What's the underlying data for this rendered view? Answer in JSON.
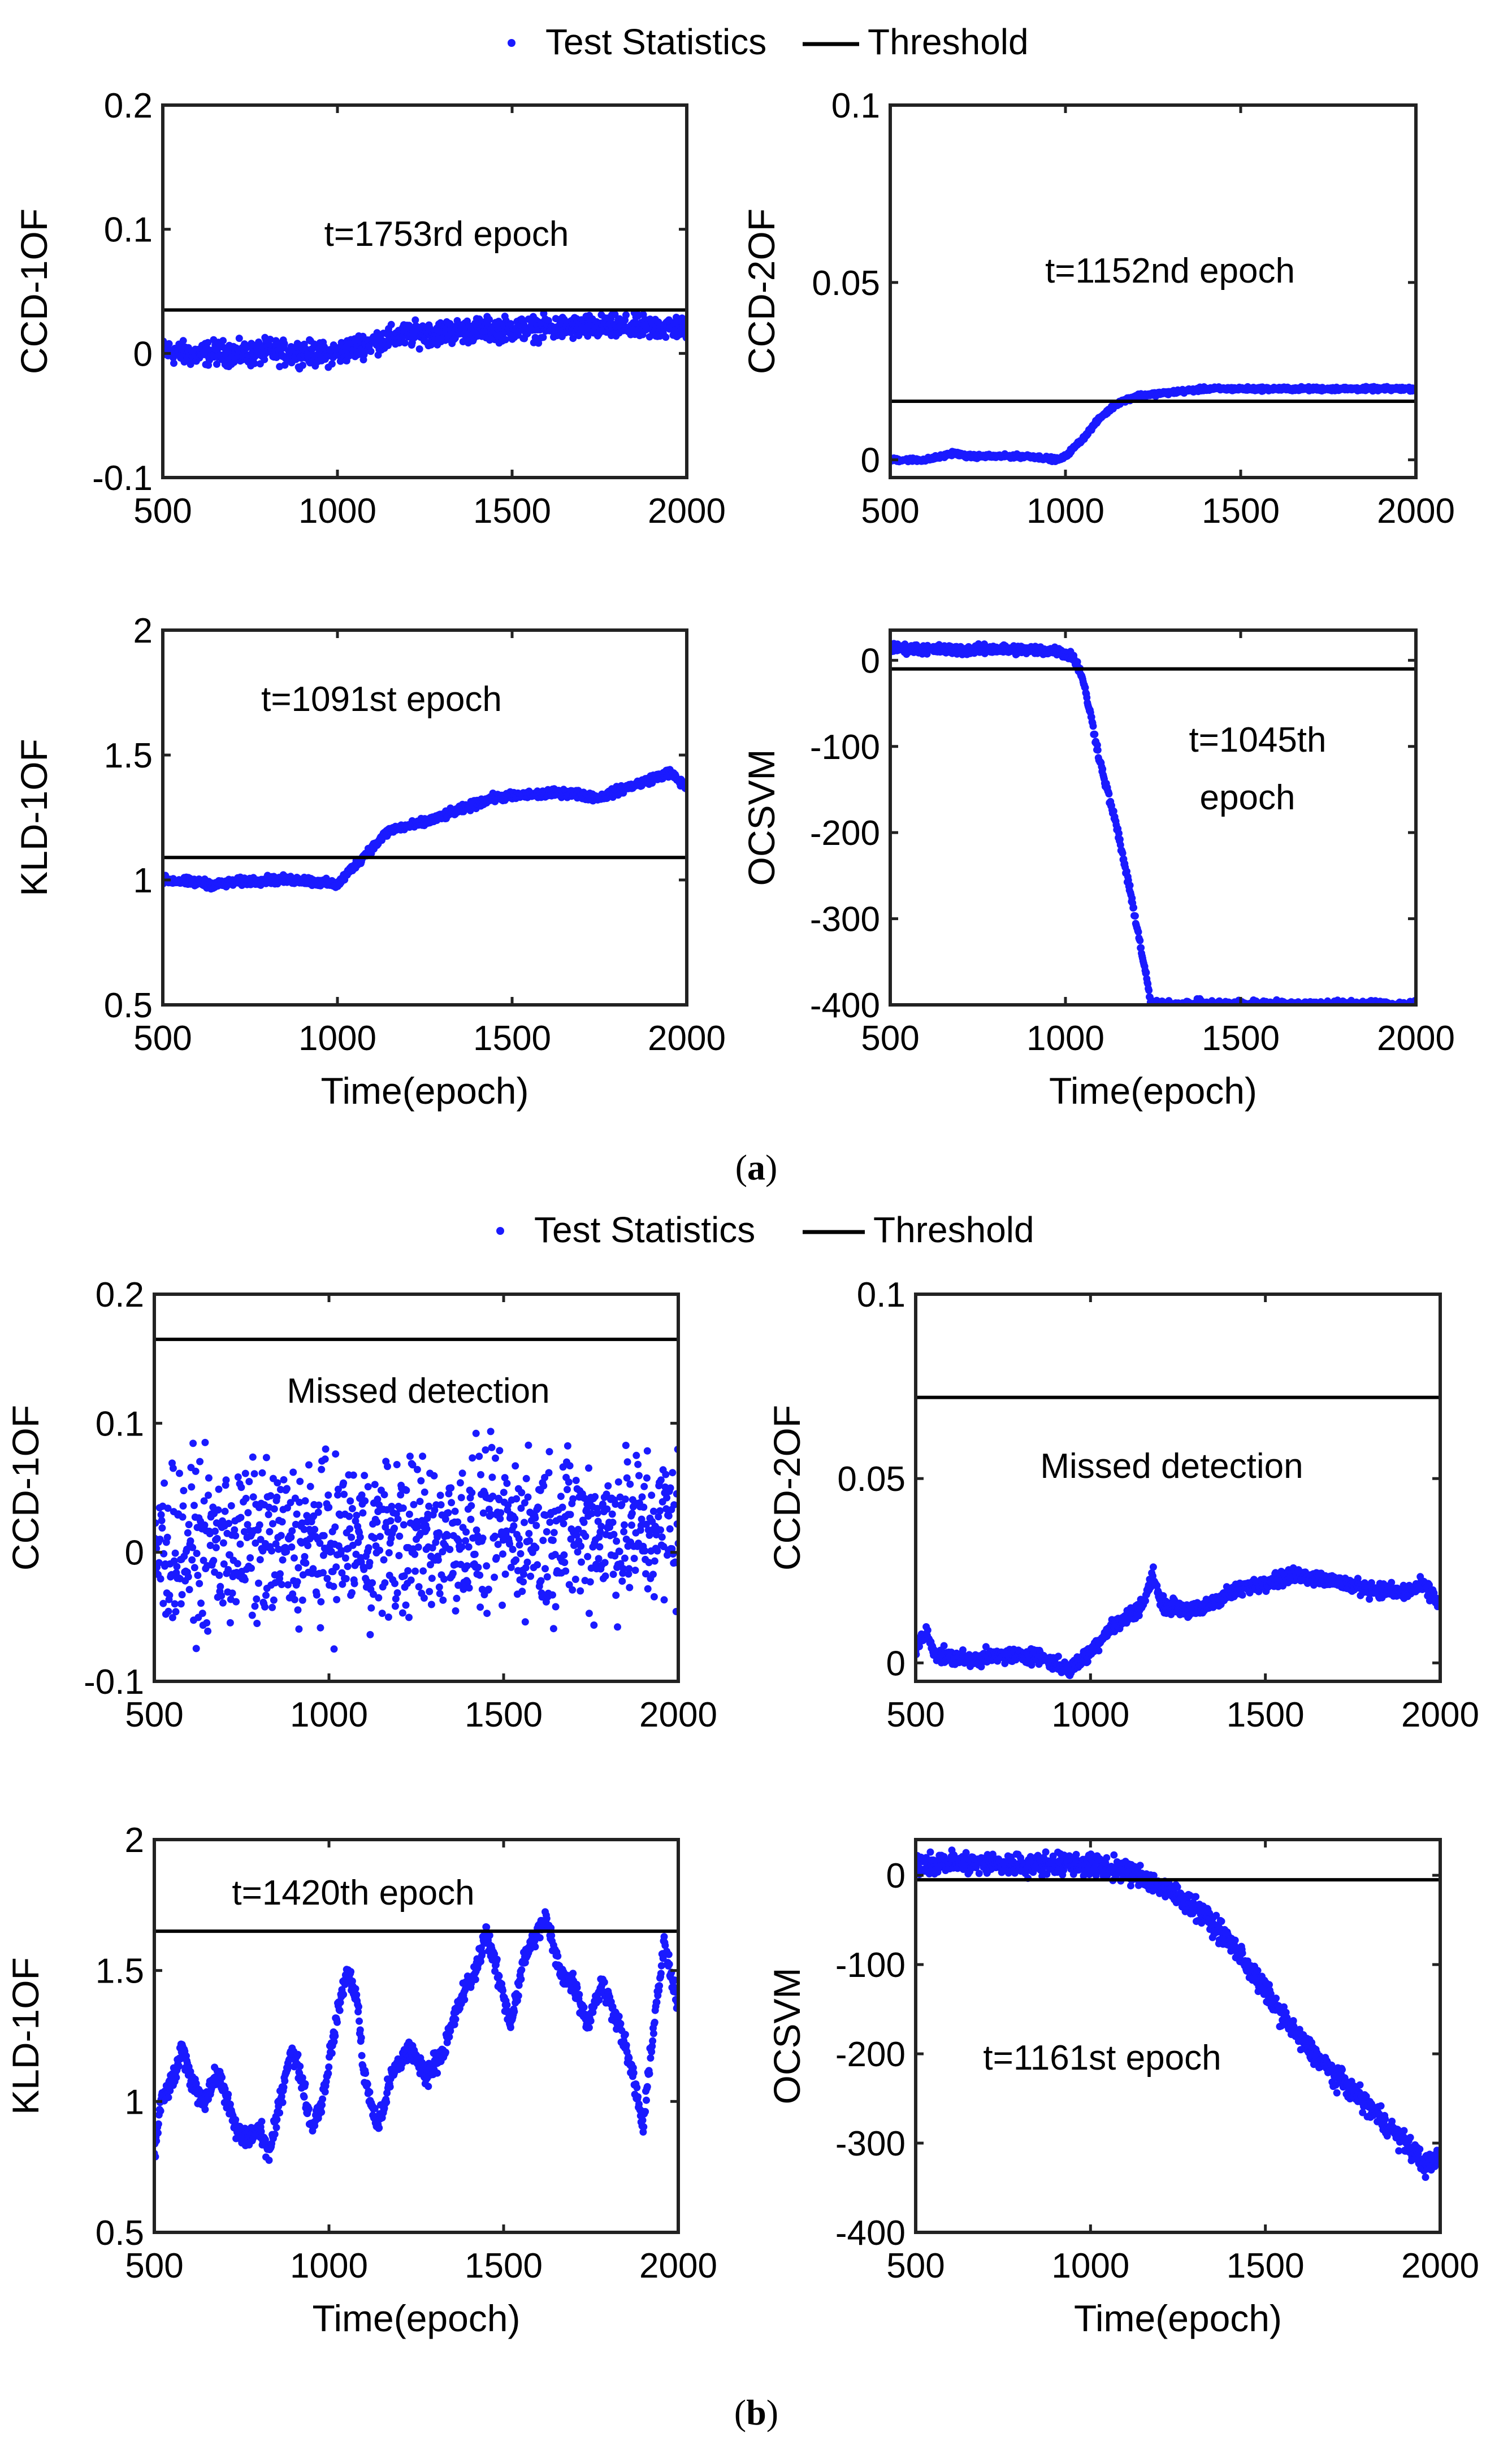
{
  "colors": {
    "points": "#1a1aff",
    "threshold": "#000000",
    "frame": "#222222"
  },
  "figure": {
    "panel_a_caption": "(a)",
    "panel_b_caption": "(b)",
    "caption_letter_a": "a",
    "caption_letter_b": "b",
    "legend": {
      "points_label": "Test Statistics",
      "line_label": "Threshold"
    },
    "xlabel": "Time(epoch)"
  },
  "chart_data": [
    {
      "panel": "a",
      "type": "scatter",
      "ylabel": "CCD-1OF",
      "annotation": "t=1753rd epoch",
      "xlim": [
        500,
        2000
      ],
      "ylim": [
        -0.1,
        0.2
      ],
      "xticks": [
        "500",
        "1000",
        "1500",
        "2000"
      ],
      "yticks": [
        "-0.1",
        "0",
        "0.1",
        "0.2"
      ],
      "threshold": 0.035,
      "series": [
        {
          "name": "Test Statistics",
          "points": [
            [
              500,
              0.002
            ],
            [
              550,
              0.0
            ],
            [
              600,
              -0.001
            ],
            [
              650,
              0.001
            ],
            [
              700,
              0.0
            ],
            [
              750,
              -0.001
            ],
            [
              800,
              0.002
            ],
            [
              850,
              0.0
            ],
            [
              900,
              0.001
            ],
            [
              950,
              -0.001
            ],
            [
              1000,
              0.0
            ],
            [
              1050,
              0.005
            ],
            [
              1100,
              0.009
            ],
            [
              1150,
              0.012
            ],
            [
              1200,
              0.015
            ],
            [
              1300,
              0.017
            ],
            [
              1400,
              0.019
            ],
            [
              1500,
              0.02
            ],
            [
              1600,
              0.02
            ],
            [
              1700,
              0.021
            ],
            [
              1800,
              0.021
            ],
            [
              1900,
              0.021
            ],
            [
              2000,
              0.021
            ]
          ],
          "noise": 0.007
        }
      ]
    },
    {
      "panel": "a",
      "type": "scatter",
      "ylabel": "CCD-2OF",
      "annotation": "t=1152nd epoch",
      "xlim": [
        500,
        2000
      ],
      "ylim": [
        -0.005,
        0.1
      ],
      "xticks": [
        "500",
        "1000",
        "1500",
        "2000"
      ],
      "yticks": [
        "0",
        "0.05",
        "0.1"
      ],
      "threshold": 0.0165,
      "series": [
        {
          "name": "Test Statistics",
          "points": [
            [
              500,
              0.0
            ],
            [
              600,
              0.0
            ],
            [
              650,
              0.001
            ],
            [
              680,
              0.002
            ],
            [
              720,
              0.001
            ],
            [
              800,
              0.001
            ],
            [
              900,
              0.001
            ],
            [
              980,
              0.0
            ],
            [
              1000,
              0.001
            ],
            [
              1050,
              0.006
            ],
            [
              1100,
              0.012
            ],
            [
              1150,
              0.016
            ],
            [
              1200,
              0.018
            ],
            [
              1300,
              0.019
            ],
            [
              1400,
              0.02
            ],
            [
              1500,
              0.02
            ],
            [
              1600,
              0.02
            ],
            [
              1700,
              0.02
            ],
            [
              1800,
              0.02
            ],
            [
              1900,
              0.02
            ],
            [
              2000,
              0.02
            ]
          ],
          "noise": 0.0004
        }
      ]
    },
    {
      "panel": "a",
      "type": "scatter",
      "ylabel": "KLD-1OF",
      "annotation": "t=1091st epoch",
      "xlim": [
        500,
        2000
      ],
      "ylim": [
        0.5,
        2
      ],
      "xticks": [
        "500",
        "1000",
        "1500",
        "2000"
      ],
      "yticks": [
        "0.5",
        "1",
        "1.5",
        "2"
      ],
      "threshold": 1.09,
      "series": [
        {
          "name": "Test Statistics",
          "points": [
            [
              500,
              1.0
            ],
            [
              600,
              0.99
            ],
            [
              650,
              0.98
            ],
            [
              700,
              0.99
            ],
            [
              800,
              1.0
            ],
            [
              900,
              1.0
            ],
            [
              1000,
              0.98
            ],
            [
              1050,
              1.06
            ],
            [
              1100,
              1.13
            ],
            [
              1150,
              1.2
            ],
            [
              1250,
              1.23
            ],
            [
              1350,
              1.28
            ],
            [
              1450,
              1.33
            ],
            [
              1550,
              1.34
            ],
            [
              1650,
              1.35
            ],
            [
              1750,
              1.33
            ],
            [
              1850,
              1.38
            ],
            [
              1950,
              1.43
            ],
            [
              2000,
              1.37
            ]
          ],
          "noise": 0.012
        }
      ]
    },
    {
      "panel": "a",
      "type": "scatter",
      "ylabel": "OCSVM",
      "annotation": "t=1045th",
      "annotation_line2": "epoch",
      "xlim": [
        500,
        2000
      ],
      "ylim": [
        -400,
        35
      ],
      "xticks": [
        "500",
        "1000",
        "1500",
        "2000"
      ],
      "yticks": [
        "-400",
        "-300",
        "-200",
        "-100",
        "0"
      ],
      "threshold": -10,
      "series": [
        {
          "name": "Test Statistics",
          "points": [
            [
              500,
              14
            ],
            [
              600,
              13
            ],
            [
              700,
              12
            ],
            [
              800,
              13
            ],
            [
              900,
              12
            ],
            [
              980,
              11
            ],
            [
              1020,
              5
            ],
            [
              1045,
              -15
            ],
            [
              1070,
              -60
            ],
            [
              1100,
              -120
            ],
            [
              1150,
              -200
            ],
            [
              1200,
              -300
            ],
            [
              1245,
              -400
            ]
          ],
          "noise": 4
        }
      ]
    },
    {
      "panel": "b",
      "type": "scatter",
      "ylabel": "CCD-1OF",
      "annotation": "Missed detection",
      "xlim": [
        500,
        2000
      ],
      "ylim": [
        -0.1,
        0.2
      ],
      "xticks": [
        "500",
        "1000",
        "1500",
        "2000"
      ],
      "yticks": [
        "-0.1",
        "0",
        "0.1",
        "0.2"
      ],
      "threshold": 0.165,
      "series": [
        {
          "name": "Test Statistics",
          "points": [
            [
              500,
              0.003
            ],
            [
              1000,
              0.008
            ],
            [
              1500,
              0.016
            ],
            [
              2000,
              0.02
            ]
          ],
          "noise": 0.045
        }
      ]
    },
    {
      "panel": "b",
      "type": "scatter",
      "ylabel": "CCD-2OF",
      "annotation": "Missed detection",
      "xlim": [
        500,
        2000
      ],
      "ylim": [
        -0.005,
        0.1
      ],
      "xticks": [
        "500",
        "1000",
        "1500",
        "2000"
      ],
      "yticks": [
        "0",
        "0.05",
        "0.1"
      ],
      "threshold": 0.072,
      "series": [
        {
          "name": "Test Statistics",
          "points": [
            [
              500,
              0.004
            ],
            [
              530,
              0.008
            ],
            [
              560,
              0.002
            ],
            [
              650,
              0.001
            ],
            [
              750,
              0.002
            ],
            [
              850,
              0.002
            ],
            [
              940,
              -0.002
            ],
            [
              1000,
              0.003
            ],
            [
              1050,
              0.009
            ],
            [
              1100,
              0.012
            ],
            [
              1150,
              0.016
            ],
            [
              1180,
              0.024
            ],
            [
              1200,
              0.016
            ],
            [
              1300,
              0.014
            ],
            [
              1400,
              0.019
            ],
            [
              1500,
              0.022
            ],
            [
              1600,
              0.024
            ],
            [
              1700,
              0.022
            ],
            [
              1800,
              0.02
            ],
            [
              1900,
              0.019
            ],
            [
              1950,
              0.021
            ],
            [
              2000,
              0.016
            ]
          ],
          "noise": 0.0015
        }
      ]
    },
    {
      "panel": "b",
      "type": "scatter",
      "ylabel": "KLD-1OF",
      "annotation": "t=1420th epoch",
      "xlim": [
        500,
        2000
      ],
      "ylim": [
        0.5,
        2
      ],
      "xticks": [
        "500",
        "1000",
        "1500",
        "2000"
      ],
      "yticks": [
        "0.5",
        "1",
        "1.5",
        "2"
      ],
      "threshold": 1.65,
      "series": [
        {
          "name": "Test Statistics",
          "points": [
            [
              500,
              0.8
            ],
            [
              520,
              1.0
            ],
            [
              560,
              1.1
            ],
            [
              580,
              1.2
            ],
            [
              600,
              1.1
            ],
            [
              640,
              1.0
            ],
            [
              680,
              1.1
            ],
            [
              700,
              1.05
            ],
            [
              730,
              0.9
            ],
            [
              760,
              0.85
            ],
            [
              800,
              0.9
            ],
            [
              830,
              0.8
            ],
            [
              860,
              1.0
            ],
            [
              890,
              1.2
            ],
            [
              920,
              1.1
            ],
            [
              950,
              0.9
            ],
            [
              980,
              1.0
            ],
            [
              1020,
              1.3
            ],
            [
              1050,
              1.5
            ],
            [
              1080,
              1.4
            ],
            [
              1100,
              1.1
            ],
            [
              1140,
              0.9
            ],
            [
              1180,
              1.1
            ],
            [
              1230,
              1.2
            ],
            [
              1280,
              1.1
            ],
            [
              1330,
              1.2
            ],
            [
              1380,
              1.4
            ],
            [
              1420,
              1.5
            ],
            [
              1450,
              1.65
            ],
            [
              1480,
              1.5
            ],
            [
              1520,
              1.3
            ],
            [
              1560,
              1.55
            ],
            [
              1600,
              1.65
            ],
            [
              1620,
              1.7
            ],
            [
              1660,
              1.5
            ],
            [
              1700,
              1.45
            ],
            [
              1740,
              1.3
            ],
            [
              1780,
              1.45
            ],
            [
              1830,
              1.3
            ],
            [
              1870,
              1.1
            ],
            [
              1900,
              0.9
            ],
            [
              1930,
              1.3
            ],
            [
              1960,
              1.6
            ],
            [
              2000,
              1.35
            ]
          ],
          "noise": 0.03
        }
      ]
    },
    {
      "panel": "b",
      "type": "scatter",
      "ylabel": "OCSVM",
      "annotation": "t=1161st epoch",
      "xlim": [
        500,
        2000
      ],
      "ylim": [
        -400,
        40
      ],
      "xticks": [
        "500",
        "1000",
        "1500",
        "2000"
      ],
      "yticks": [
        "-400",
        "-300",
        "-200",
        "-100",
        "0"
      ],
      "threshold": -5,
      "series": [
        {
          "name": "Test Statistics",
          "points": [
            [
              500,
              15
            ],
            [
              600,
              14
            ],
            [
              700,
              13
            ],
            [
              800,
              12
            ],
            [
              900,
              13
            ],
            [
              1000,
              12
            ],
            [
              1100,
              5
            ],
            [
              1150,
              -2
            ],
            [
              1200,
              -12
            ],
            [
              1300,
              -35
            ],
            [
              1400,
              -75
            ],
            [
              1500,
              -130
            ],
            [
              1600,
              -185
            ],
            [
              1700,
              -225
            ],
            [
              1800,
              -260
            ],
            [
              1900,
              -300
            ],
            [
              1960,
              -325
            ],
            [
              2000,
              -315
            ]
          ],
          "noise": 9
        }
      ]
    }
  ]
}
